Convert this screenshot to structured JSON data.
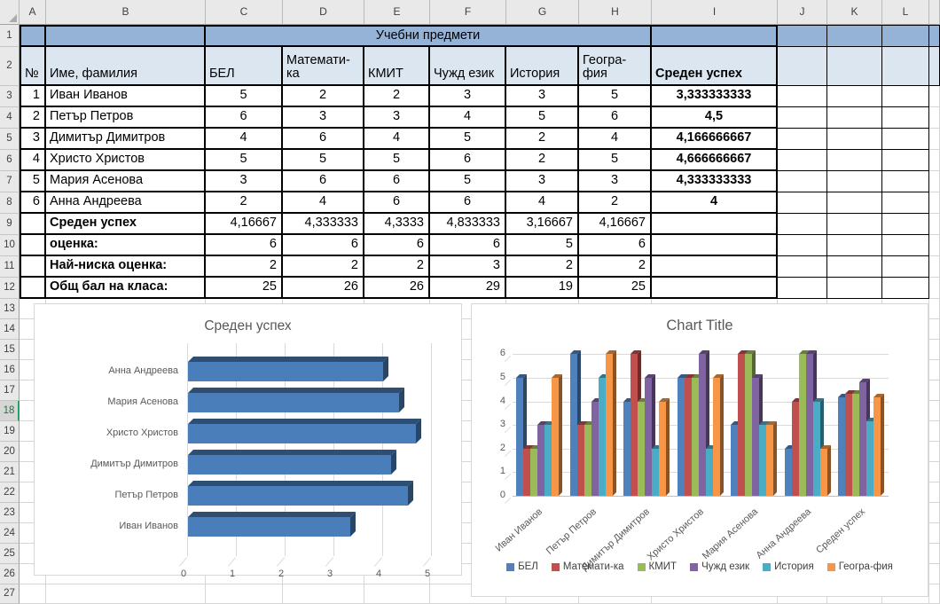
{
  "sheet": {
    "column_headers": [
      "A",
      "B",
      "C",
      "D",
      "E",
      "F",
      "G",
      "H",
      "I",
      "J",
      "K",
      "L"
    ],
    "row_headers": [
      "1",
      "2",
      "3",
      "4",
      "5",
      "6",
      "7",
      "8",
      "9",
      "10",
      "11",
      "12",
      "13",
      "14",
      "15",
      "16",
      "17",
      "18",
      "19",
      "20",
      "21",
      "22",
      "23",
      "24",
      "25",
      "26",
      "27"
    ],
    "active_row": "18",
    "table": {
      "title": "Учебни предмети",
      "columns": {
        "num": "№",
        "name": "Име, фамилия",
        "subjects": [
          "БЕЛ",
          "Математи-ка",
          "КМИТ",
          "Чужд език",
          "История",
          "Геогра-фия"
        ],
        "average": "Среден успех"
      },
      "students": [
        {
          "num": "1",
          "name": "Иван Иванов",
          "grades": [
            "5",
            "2",
            "2",
            "3",
            "3",
            "5"
          ],
          "average": "3,333333333"
        },
        {
          "num": "2",
          "name": "Петър Петров",
          "grades": [
            "6",
            "3",
            "3",
            "4",
            "5",
            "6"
          ],
          "average": "4,5"
        },
        {
          "num": "3",
          "name": "Димитър Димитров",
          "grades": [
            "4",
            "6",
            "4",
            "5",
            "2",
            "4"
          ],
          "average": "4,166666667"
        },
        {
          "num": "4",
          "name": "Христо Христов",
          "grades": [
            "5",
            "5",
            "5",
            "6",
            "2",
            "5"
          ],
          "average": "4,666666667"
        },
        {
          "num": "5",
          "name": "Мария Асенова",
          "grades": [
            "3",
            "6",
            "6",
            "5",
            "3",
            "3"
          ],
          "average": "4,333333333"
        },
        {
          "num": "6",
          "name": "Анна Андреева",
          "grades": [
            "2",
            "4",
            "6",
            "6",
            "4",
            "2"
          ],
          "average": "4"
        }
      ],
      "summary_rows": [
        {
          "label": "Среден успех",
          "values": [
            "4,16667",
            "4,333333",
            "4,3333",
            "4,833333",
            "3,16667",
            "4,16667"
          ]
        },
        {
          "label": "оценка:",
          "values": [
            "6",
            "6",
            "6",
            "6",
            "5",
            "6"
          ]
        },
        {
          "label": "Най-ниска оценка:",
          "values": [
            "2",
            "2",
            "2",
            "3",
            "2",
            "2"
          ]
        },
        {
          "label": "Общ бал на класа:",
          "values": [
            "25",
            "26",
            "26",
            "29",
            "19",
            "25"
          ]
        }
      ]
    },
    "colors": {
      "band_blue": "#95B3D7",
      "band_light": "#DCE6F1",
      "active_green": "#21A366"
    }
  },
  "chart_data": [
    {
      "type": "bar",
      "orientation": "horizontal",
      "style": "3d",
      "title": "Среден успех",
      "categories": [
        "Анна Андреева",
        "Мария Асенова",
        "Христо Христов",
        "Димитър Димитров",
        "Петър Петров",
        "Иван Иванов"
      ],
      "values": [
        4,
        4.33,
        4.67,
        4.17,
        4.5,
        3.33
      ],
      "xlim": [
        0,
        5
      ],
      "xticks": [
        "0",
        "1",
        "2",
        "3",
        "4",
        "5"
      ],
      "bar_color": "#4A7EBB",
      "grid": true,
      "legend": "none"
    },
    {
      "type": "bar",
      "orientation": "vertical",
      "style": "3d",
      "title": "Chart Title",
      "categories": [
        "Иван Иванов",
        "Петър Петров",
        "Димитър Димитров",
        "Христо Христов",
        "Мария Асенова",
        "Анна Андреева",
        "Среден успех"
      ],
      "series": [
        {
          "name": "БЕЛ",
          "color": "#4F81BD",
          "values": [
            5,
            6,
            4,
            5,
            3,
            2,
            4.17
          ]
        },
        {
          "name": "Математи-ка",
          "color": "#C0504D",
          "values": [
            2,
            3,
            6,
            5,
            6,
            4,
            4.33
          ]
        },
        {
          "name": "КМИТ",
          "color": "#9BBB59",
          "values": [
            2,
            3,
            4,
            5,
            6,
            6,
            4.33
          ]
        },
        {
          "name": "Чужд език",
          "color": "#8064A2",
          "values": [
            3,
            4,
            5,
            6,
            5,
            6,
            4.83
          ]
        },
        {
          "name": "История",
          "color": "#4BACC6",
          "values": [
            3,
            5,
            2,
            2,
            3,
            4,
            3.17
          ]
        },
        {
          "name": "Геогра-фия",
          "color": "#F79646",
          "values": [
            5,
            6,
            4,
            5,
            3,
            2,
            4.17
          ]
        }
      ],
      "ylim": [
        0,
        6
      ],
      "yticks": [
        "0",
        "1",
        "2",
        "3",
        "4",
        "5",
        "6"
      ],
      "grid": true,
      "legend_position": "bottom"
    }
  ]
}
